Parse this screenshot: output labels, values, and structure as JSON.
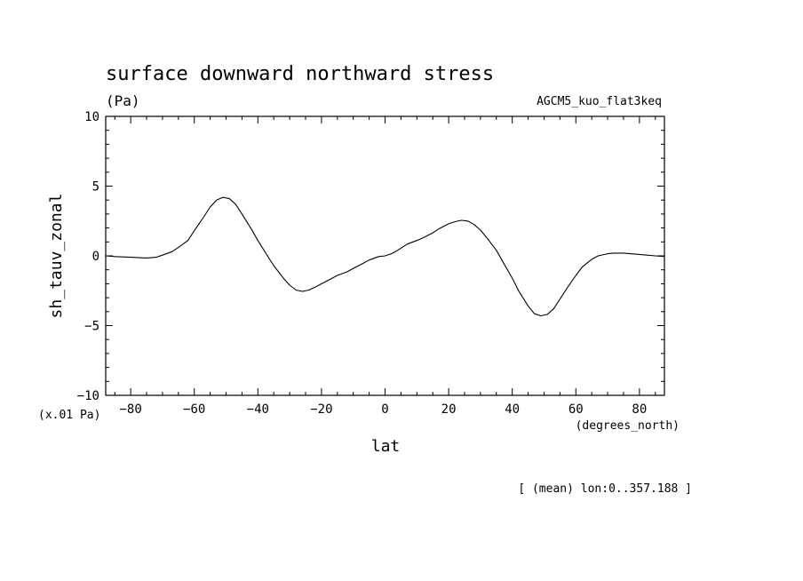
{
  "chart_data": {
    "type": "line",
    "title": "surface downward northward stress",
    "units_label": "(Pa)",
    "experiment": "AGCM5_kuo_flat3keq",
    "xlabel": "lat",
    "xunits": "(degrees_north)",
    "ylabel": "sh_tauv_zonal",
    "yscale_note": "(x.01 Pa)",
    "footer": "[ (mean) lon:0..357.188 ]",
    "xlim": [
      -87.86,
      87.86
    ],
    "ylim": [
      -10,
      10
    ],
    "xticks": [
      -80,
      -60,
      -40,
      -20,
      0,
      20,
      40,
      60,
      80
    ],
    "xtick_labels": [
      "-80",
      "-60",
      "-40",
      "-20",
      "0",
      "20",
      "40",
      "60",
      "80"
    ],
    "yticks": [
      -10,
      -5,
      0,
      5,
      10
    ],
    "ytick_labels": [
      "-10",
      "-5",
      "0",
      "5",
      "10"
    ],
    "grid": false,
    "series": [
      {
        "color": "#000000",
        "x": [
          -87.86,
          -85,
          -80,
          -75,
          -72,
          -70,
          -67,
          -65,
          -62,
          -60,
          -57,
          -55,
          -53,
          -51,
          -49,
          -47,
          -45,
          -42,
          -40,
          -37,
          -35,
          -32,
          -30,
          -28,
          -26,
          -24,
          -22,
          -20,
          -17,
          -15,
          -12,
          -10,
          -7,
          -5,
          -2,
          0,
          2,
          4,
          7,
          10,
          12,
          15,
          17,
          20,
          22,
          24,
          26,
          28,
          30,
          32,
          35,
          37,
          40,
          42,
          45,
          47,
          49,
          51,
          53,
          55,
          57,
          60,
          62,
          65,
          67,
          70,
          72,
          75,
          80,
          85,
          87.86
        ],
        "y": [
          0.0,
          -0.05,
          -0.1,
          -0.15,
          -0.1,
          0.05,
          0.3,
          0.6,
          1.1,
          1.8,
          2.8,
          3.5,
          4.0,
          4.2,
          4.1,
          3.7,
          3.0,
          1.9,
          1.1,
          0.0,
          -0.7,
          -1.6,
          -2.1,
          -2.45,
          -2.55,
          -2.45,
          -2.25,
          -2.0,
          -1.65,
          -1.4,
          -1.15,
          -0.9,
          -0.55,
          -0.3,
          -0.05,
          0.0,
          0.15,
          0.4,
          0.85,
          1.1,
          1.3,
          1.65,
          1.95,
          2.3,
          2.45,
          2.55,
          2.5,
          2.25,
          1.85,
          1.3,
          0.4,
          -0.4,
          -1.6,
          -2.5,
          -3.6,
          -4.15,
          -4.3,
          -4.2,
          -3.8,
          -3.1,
          -2.4,
          -1.4,
          -0.8,
          -0.25,
          0.0,
          0.15,
          0.2,
          0.2,
          0.1,
          0.0,
          -0.05
        ]
      }
    ]
  }
}
